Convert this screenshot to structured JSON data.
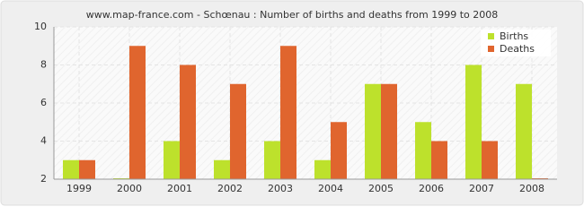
{
  "chart_data": {
    "type": "bar",
    "title": "www.map-france.com - Schœnau : Number of births and deaths from 1999 to 2008",
    "categories": [
      "1999",
      "2000",
      "2001",
      "2002",
      "2003",
      "2004",
      "2005",
      "2006",
      "2007",
      "2008"
    ],
    "series": [
      {
        "name": "Births",
        "color": "#bde12c",
        "values": [
          3,
          2,
          4,
          3,
          4,
          3,
          7,
          5,
          8,
          7
        ]
      },
      {
        "name": "Deaths",
        "color": "#e0652e",
        "values": [
          3,
          9,
          8,
          7,
          9,
          5,
          7,
          4,
          4,
          2
        ]
      }
    ],
    "ylim": [
      2,
      10
    ],
    "yticks": [
      2,
      4,
      6,
      8,
      10
    ],
    "grid": true,
    "legend": "top-right"
  }
}
